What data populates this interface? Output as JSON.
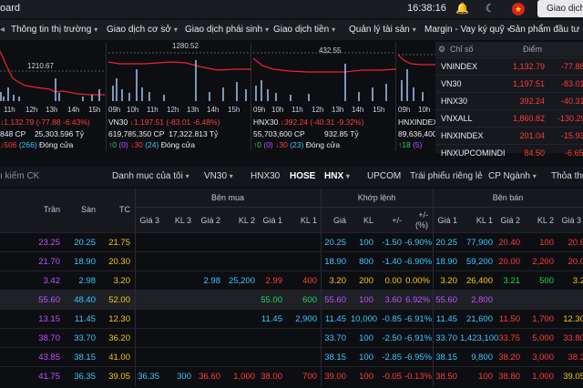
{
  "topbar": {
    "brand": "oard",
    "clock": "16:38:16",
    "trade_label": "Giao dịch"
  },
  "menu": [
    {
      "label": "Thông tin thị trường"
    },
    {
      "label": "Giao dịch cơ sở"
    },
    {
      "label": "Giao dịch phái sinh"
    },
    {
      "label": "Giao dịch tiền"
    },
    {
      "label": "Quản lý tài sản"
    },
    {
      "label": "Margin - Vay ký quỹ"
    },
    {
      "label": "Sản phẩm đầu tư"
    }
  ],
  "charts": [
    {
      "name": "VNINDEX",
      "peak": "1210.67",
      "ticks": [
        "11h",
        "12h",
        "13h",
        "14h",
        "15h"
      ],
      "line1": {
        "code": "",
        "change": "↓1,132.79 (-77.88 -6.43%)"
      },
      "line2": {
        "cp": "848 CP",
        "value": "25,303.596 Tỷ"
      },
      "line3": {
        "a": "",
        "b": "↓506",
        "c": "(266)",
        "status": "Đóng cửa"
      }
    },
    {
      "name": "VN30",
      "peak": "1280.52",
      "ticks": [
        "09h",
        "10h",
        "11h",
        "12h",
        "13h",
        "14h",
        "15h"
      ],
      "line1": {
        "code": "VN30",
        "change": "↓1,197.51 (-83.01 -6.48%)"
      },
      "line2": {
        "cp": "619,785,350 CP",
        "value": "17,322.813 Tỷ"
      },
      "line3": {
        "a": "↑0",
        "b": "(0)",
        "c": "↓30",
        "d": "(24)",
        "status": "Đóng cửa"
      }
    },
    {
      "name": "HNX30",
      "peak": "432.55",
      "ticks": [
        "09h",
        "10h",
        "11h",
        "12h",
        "13h",
        "14h",
        "15h"
      ],
      "line1": {
        "code": "HNX30",
        "change": "↓392.24 (-40.31 -9.32%)"
      },
      "line2": {
        "cp": "55,703,600 CP",
        "value": "932.85 Tỷ"
      },
      "line3": {
        "a": "↑0",
        "b": "(0)",
        "c": "↓30",
        "d": "(23)",
        "status": "Đóng cửa"
      }
    },
    {
      "name": "HNXINDEX",
      "peak": "",
      "ticks": [
        "09h",
        "10h"
      ],
      "line1": {
        "code": "HNXINDEX",
        "change": ""
      },
      "line2": {
        "cp": "89,636,400",
        "value": ""
      },
      "line3": {
        "a": "↑18",
        "b": "(5)",
        "c": "",
        "status": ""
      }
    }
  ],
  "index_panel": {
    "head_name": "Chỉ số",
    "head_point": "Điểm",
    "rows": [
      {
        "name": "VNINDEX",
        "point": "1,132.79",
        "change": "-77.88"
      },
      {
        "name": "VN30",
        "point": "1,197.51",
        "change": "-83.01"
      },
      {
        "name": "HNX30",
        "point": "392.24",
        "change": "-40.31"
      },
      {
        "name": "VNXALL",
        "point": "1,860.82",
        "change": "-130.29"
      },
      {
        "name": "HNXINDEX",
        "point": "201.04",
        "change": "-15.93"
      },
      {
        "name": "HNXUPCOMINDI",
        "point": "84.50",
        "change": "-6.65"
      }
    ]
  },
  "filter": {
    "search_placeholder": "ı kiếm CK",
    "items": [
      "Danh mục của tôi",
      "VN30",
      "HNX30",
      "HOSE",
      "HNX",
      "UPCOM",
      "Trái phiếu riêng lẻ",
      "CP Ngành",
      "Thỏa thu"
    ]
  },
  "table": {
    "groups": {
      "buy": "Bên mua",
      "match": "Khớp lệnh",
      "sell": "Bên bán"
    },
    "cols": {
      "ceil": "Trần",
      "floor": "Sàn",
      "ref": "TC",
      "g3": "Giá 3",
      "kl3": "KL 3",
      "g2": "Giá 2",
      "kl2": "KL 2",
      "g1": "Giá 1",
      "kl1": "KL 1",
      "price": "Giá",
      "vol": "KL",
      "chg": "+/-",
      "pct": "+/-",
      "pct2": "(%)",
      "sg1": "Giá 1",
      "skl1": "KL 1",
      "sg2": "Giá 2",
      "skl2": "KL 2",
      "sg3": "Giá 3"
    },
    "rows": [
      {
        "ceil": "23.25",
        "floor": "20.25",
        "ref": "21.75",
        "g3": "",
        "kl3": "",
        "g2": "",
        "kl2": "",
        "g1": "",
        "kl1": "",
        "price": "20.25",
        "vol": "100",
        "chg": "-1.50",
        "pct": "-6.90%",
        "sg1": "20.25",
        "skl1": "77,900",
        "sg2": "20.40",
        "skl2": "100",
        "sg3": "20.6"
      },
      {
        "ceil": "21.70",
        "floor": "18.90",
        "ref": "20.30",
        "g3": "",
        "kl3": "",
        "g2": "",
        "kl2": "",
        "g1": "",
        "kl1": "",
        "price": "18.90",
        "vol": "800",
        "chg": "-1.40",
        "pct": "-6.90%",
        "sg1": "18.90",
        "skl1": "59,200",
        "sg2": "20.00",
        "skl2": "2,200",
        "sg3": "20.0"
      },
      {
        "ceil": "3.42",
        "floor": "2.98",
        "ref": "3.20",
        "g3": "",
        "kl3": "",
        "g2": "2.98",
        "kl2": "25,200",
        "g1": "2.99",
        "kl1": "400",
        "price": "3.20",
        "vol": "200",
        "chg": "0.00",
        "pct": "0.00%",
        "sg1": "3.20",
        "skl1": "26,400",
        "sg2": "3.21",
        "skl2": "500",
        "sg3": "3.2"
      },
      {
        "ceil": "55.60",
        "floor": "48.40",
        "ref": "52.00",
        "g3": "",
        "kl3": "",
        "g2": "",
        "kl2": "",
        "g1": "55.00",
        "kl1": "600",
        "price": "55.60",
        "vol": "100",
        "chg": "3.60",
        "pct": "6.92%",
        "sg1": "55.60",
        "skl1": "2,800",
        "sg2": "",
        "skl2": "",
        "sg3": ""
      },
      {
        "ceil": "13.15",
        "floor": "11.45",
        "ref": "12.30",
        "g3": "",
        "kl3": "",
        "g2": "",
        "kl2": "",
        "g1": "11.45",
        "kl1": "2,900",
        "price": "11.45",
        "vol": "10,000",
        "chg": "-0.85",
        "pct": "-6.91%",
        "sg1": "11.45",
        "skl1": "21,600",
        "sg2": "11.50",
        "skl2": "1,700",
        "sg3": "12.30"
      },
      {
        "ceil": "38.70",
        "floor": "33.70",
        "ref": "36.20",
        "g3": "",
        "kl3": "",
        "g2": "",
        "kl2": "",
        "g1": "",
        "kl1": "",
        "price": "33.70",
        "vol": "100",
        "chg": "-2.50",
        "pct": "-6.91%",
        "sg1": "33.70",
        "skl1": "1,423,100",
        "sg2": "33.75",
        "skl2": "5,000",
        "sg3": "33.80"
      },
      {
        "ceil": "43.85",
        "floor": "38.15",
        "ref": "41.00",
        "g3": "",
        "kl3": "",
        "g2": "",
        "kl2": "",
        "g1": "",
        "kl1": "",
        "price": "38.15",
        "vol": "100",
        "chg": "-2.85",
        "pct": "-6.95%",
        "sg1": "38.15",
        "skl1": "9,800",
        "sg2": "38.20",
        "skl2": "3,000",
        "sg3": "38.3"
      },
      {
        "ceil": "41.75",
        "floor": "36.35",
        "ref": "39.05",
        "g3": "36.35",
        "kl3": "300",
        "g2": "36.60",
        "kl2": "1,000",
        "g1": "38.00",
        "kl1": "700",
        "price": "39.00",
        "vol": "100",
        "chg": "-0.05",
        "pct": "-0.13%",
        "sg1": "38.50",
        "skl1": "100",
        "sg2": "38.80",
        "skl2": "1,000",
        "sg3": "39.05"
      }
    ]
  },
  "colors": {
    "down": "#ff3b3b",
    "up": "#1fd35b",
    "ref": "#f3c613",
    "ceil": "#c050ff",
    "floor": "#36c7ff",
    "bg": "#0d0e12"
  }
}
